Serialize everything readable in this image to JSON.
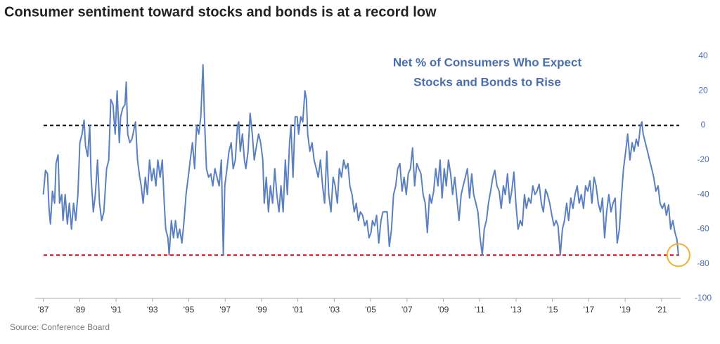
{
  "chart_data": {
    "type": "line",
    "title": "Consumer sentiment toward stocks and bonds is at a record low",
    "annotation": [
      "Net % of Consumers Who Expect",
      "Stocks and Bonds to Rise"
    ],
    "source": "Source: Conference Board",
    "x": [
      1987.0,
      1987.12,
      1987.23,
      1987.31,
      1987.39,
      1987.5,
      1987.62,
      1987.7,
      1987.81,
      1987.89,
      1988.01,
      1988.08,
      1988.2,
      1988.32,
      1988.43,
      1988.55,
      1988.66,
      1988.78,
      1988.9,
      1989.01,
      1989.13,
      1989.24,
      1989.32,
      1989.44,
      1989.55,
      1989.63,
      1989.75,
      1989.86,
      1989.98,
      1990.09,
      1990.21,
      1990.33,
      1990.48,
      1990.6,
      1990.71,
      1990.83,
      1990.95,
      1991.06,
      1991.18,
      1991.25,
      1991.37,
      1991.49,
      1991.56,
      1991.64,
      1991.76,
      1991.87,
      1991.99,
      1992.07,
      1992.18,
      1992.3,
      1992.38,
      1992.49,
      1992.61,
      1992.72,
      1992.84,
      1992.96,
      1993.07,
      1993.19,
      1993.3,
      1993.42,
      1993.54,
      1993.65,
      1993.73,
      1993.85,
      1993.92,
      1994.04,
      1994.16,
      1994.27,
      1994.39,
      1994.5,
      1994.62,
      1994.74,
      1994.85,
      1994.97,
      1995.08,
      1995.2,
      1995.32,
      1995.43,
      1995.55,
      1995.66,
      1995.78,
      1995.86,
      1995.97,
      1996.09,
      1996.21,
      1996.32,
      1996.44,
      1996.55,
      1996.67,
      1996.79,
      1996.9,
      1996.98,
      1997.1,
      1997.21,
      1997.33,
      1997.44,
      1997.56,
      1997.68,
      1997.75,
      1997.83,
      1997.95,
      1998.06,
      1998.14,
      1998.26,
      1998.37,
      1998.49,
      1998.6,
      1998.72,
      1998.84,
      1998.95,
      1999.07,
      1999.15,
      1999.26,
      1999.38,
      1999.49,
      1999.61,
      1999.73,
      1999.84,
      1999.96,
      2000.07,
      2000.19,
      2000.31,
      2000.42,
      2000.54,
      2000.62,
      2000.73,
      2000.85,
      2000.96,
      2001.04,
      2001.16,
      2001.27,
      2001.39,
      2001.47,
      2001.54,
      2001.66,
      2001.78,
      2001.89,
      2002.01,
      2002.12,
      2002.24,
      2002.36,
      2002.47,
      2002.59,
      2002.7,
      2002.82,
      2002.94,
      2003.05,
      2003.17,
      2003.28,
      2003.4,
      2003.52,
      2003.63,
      2003.75,
      2003.86,
      2003.98,
      2004.1,
      2004.21,
      2004.33,
      2004.44,
      2004.56,
      2004.68,
      2004.79,
      2004.91,
      2005.02,
      2005.1,
      2005.22,
      2005.33,
      2005.45,
      2005.57,
      2005.68,
      2005.8,
      2005.91,
      2006.03,
      2006.15,
      2006.26,
      2006.38,
      2006.49,
      2006.61,
      2006.73,
      2006.84,
      2006.96,
      2007.07,
      2007.19,
      2007.31,
      2007.42,
      2007.54,
      2007.65,
      2007.77,
      2007.89,
      2008.0,
      2008.12,
      2008.24,
      2008.35,
      2008.47,
      2008.58,
      2008.7,
      2008.82,
      2008.93,
      2009.05,
      2009.16,
      2009.28,
      2009.4,
      2009.51,
      2009.63,
      2009.74,
      2009.86,
      2009.98,
      2010.09,
      2010.21,
      2010.32,
      2010.44,
      2010.56,
      2010.67,
      2010.79,
      2010.9,
      2011.02,
      2011.14,
      2011.25,
      2011.37,
      2011.48,
      2011.6,
      2011.72,
      2011.83,
      2011.95,
      2012.07,
      2012.18,
      2012.3,
      2012.41,
      2012.53,
      2012.65,
      2012.76,
      2012.88,
      2012.99,
      2013.11,
      2013.23,
      2013.34,
      2013.46,
      2013.57,
      2013.69,
      2013.81,
      2013.92,
      2014.04,
      2014.15,
      2014.27,
      2014.39,
      2014.5,
      2014.62,
      2014.73,
      2014.85,
      2014.97,
      2015.08,
      2015.2,
      2015.31,
      2015.43,
      2015.55,
      2015.66,
      2015.78,
      2015.89,
      2016.01,
      2016.13,
      2016.24,
      2016.36,
      2016.47,
      2016.59,
      2016.71,
      2016.82,
      2016.94,
      2017.06,
      2017.17,
      2017.29,
      2017.4,
      2017.52,
      2017.64,
      2017.75,
      2017.87,
      2017.98,
      2018.1,
      2018.22,
      2018.33,
      2018.45,
      2018.56,
      2018.68,
      2018.8,
      2018.91,
      2019.03,
      2019.14,
      2019.26,
      2019.38,
      2019.49,
      2019.61,
      2019.72,
      2019.84,
      2019.92,
      2019.99,
      2020.11,
      2020.23,
      2020.34,
      2020.46,
      2020.57,
      2020.69,
      2020.81,
      2020.92,
      2021.04,
      2021.16,
      2021.27,
      2021.39,
      2021.5,
      2021.62,
      2021.74,
      2021.85,
      2021.93
    ],
    "series": [
      {
        "color": "#5b80c0",
        "values": [
          -40,
          -26,
          -28,
          -48,
          -57,
          -38,
          -45,
          -22,
          -17,
          -45,
          -40,
          -55,
          -40,
          -57,
          -45,
          -60,
          -45,
          -55,
          -40,
          -10,
          -5,
          3,
          -12,
          -18,
          0,
          -30,
          -50,
          -40,
          -20,
          -45,
          -55,
          -50,
          -25,
          -20,
          15,
          12,
          -5,
          20,
          -10,
          5,
          10,
          12,
          25,
          -5,
          -10,
          -8,
          -2,
          2,
          -20,
          -30,
          -35,
          -45,
          -30,
          -40,
          -20,
          -32,
          -25,
          -35,
          -20,
          -30,
          -20,
          -45,
          -60,
          -65,
          -75,
          -55,
          -65,
          -55,
          -65,
          -60,
          -68,
          -55,
          -40,
          -30,
          -20,
          -10,
          -25,
          0,
          -5,
          5,
          35,
          5,
          -25,
          -30,
          -28,
          -35,
          -25,
          -30,
          -35,
          -20,
          -75,
          -35,
          -25,
          -15,
          -10,
          -25,
          -20,
          0,
          2,
          -15,
          -5,
          -20,
          -25,
          -15,
          7,
          -5,
          -20,
          -12,
          -5,
          -10,
          -20,
          -45,
          -30,
          -50,
          -35,
          -45,
          -25,
          -40,
          -50,
          -35,
          -50,
          -20,
          -40,
          -10,
          0,
          -30,
          5,
          5,
          -5,
          5,
          2,
          20,
          15,
          -5,
          -15,
          -10,
          -20,
          -25,
          -30,
          -20,
          -35,
          -45,
          -15,
          -40,
          -50,
          -30,
          -35,
          -45,
          -25,
          -30,
          -20,
          -25,
          -22,
          -35,
          -40,
          -50,
          -45,
          -55,
          -50,
          -52,
          -58,
          -55,
          -65,
          -62,
          -55,
          -58,
          -52,
          -68,
          -55,
          -50,
          -50,
          -50,
          -70,
          -60,
          -40,
          -35,
          -25,
          -22,
          -38,
          -30,
          -40,
          -28,
          -25,
          -13,
          -35,
          -22,
          -25,
          -28,
          -40,
          -45,
          -62,
          -40,
          -45,
          -38,
          -25,
          -35,
          -20,
          -42,
          -25,
          -35,
          -20,
          -28,
          -40,
          -30,
          -42,
          -55,
          -40,
          -35,
          -30,
          -25,
          -42,
          -28,
          -40,
          -45,
          -50,
          -65,
          -75,
          -60,
          -55,
          -45,
          -38,
          -30,
          -26,
          -35,
          -38,
          -48,
          -35,
          -40,
          -28,
          -45,
          -38,
          -27,
          -45,
          -60,
          -55,
          -58,
          -40,
          -48,
          -42,
          -45,
          -35,
          -40,
          -38,
          -34,
          -45,
          -50,
          -37,
          -40,
          -45,
          -52,
          -58,
          -55,
          -58,
          -75,
          -60,
          -55,
          -45,
          -55,
          -42,
          -48,
          -40,
          -35,
          -45,
          -40,
          -48,
          -35,
          -38,
          -32,
          -45,
          -30,
          -35,
          -45,
          -50,
          -42,
          -65,
          -50,
          -40,
          -50,
          -45,
          -42,
          -68,
          -60,
          -40,
          -25,
          -15,
          -5,
          -20,
          -10,
          -15,
          -8,
          -12,
          0,
          2,
          -5,
          -10,
          -15,
          -20,
          -25,
          -30,
          -38,
          -35,
          -45,
          -48,
          -45,
          -52,
          -46,
          -60,
          -55,
          -62,
          -66,
          -75
        ]
      }
    ],
    "reference_lines": [
      {
        "value": 0,
        "color": "#000000"
      },
      {
        "value": -75,
        "color": "#c00000"
      }
    ],
    "highlight": {
      "x": 2021.93,
      "y": -75,
      "color": "#f0b030"
    },
    "xlim": [
      1986.55,
      2022.05
    ],
    "xticks": [
      {
        "value": 1987,
        "label": "'87"
      },
      {
        "value": 1989,
        "label": "'89"
      },
      {
        "value": 1991,
        "label": "'91"
      },
      {
        "value": 1993,
        "label": "'93"
      },
      {
        "value": 1995,
        "label": "'95"
      },
      {
        "value": 1997,
        "label": "'97"
      },
      {
        "value": 1999,
        "label": "'99"
      },
      {
        "value": 2001,
        "label": "'01"
      },
      {
        "value": 2003,
        "label": "'03"
      },
      {
        "value": 2005,
        "label": "'05"
      },
      {
        "value": 2007,
        "label": "'07"
      },
      {
        "value": 2009,
        "label": "'09"
      },
      {
        "value": 2011,
        "label": "'11"
      },
      {
        "value": 2013,
        "label": "'13"
      },
      {
        "value": 2015,
        "label": "'15"
      },
      {
        "value": 2017,
        "label": "'17"
      },
      {
        "value": 2019,
        "label": "'19"
      },
      {
        "value": 2021,
        "label": "'21"
      }
    ],
    "ylim": [
      -100,
      40
    ],
    "yticks": [
      40,
      20,
      0,
      -20,
      -40,
      -60,
      -80,
      -100
    ]
  }
}
